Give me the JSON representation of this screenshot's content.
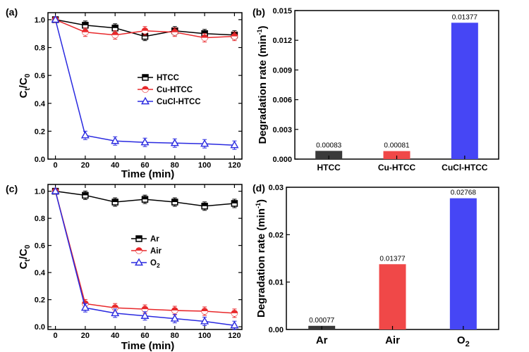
{
  "chart_data": [
    {
      "panel": "(a)",
      "type": "line",
      "xlabel": "Time (min)",
      "ylabel": "Ct/C0",
      "ylabel_main": "C",
      "ylabel_sub1": "t",
      "ylabel_sep": "/C",
      "ylabel_sub2": "0",
      "x": [
        0,
        20,
        40,
        60,
        80,
        100,
        120
      ],
      "xlim": [
        -5,
        125
      ],
      "ylim": [
        0,
        1.05
      ],
      "xticks": [
        "0",
        "20",
        "40",
        "60",
        "80",
        "100",
        "120"
      ],
      "yticks": [
        "0.0",
        "0.2",
        "0.4",
        "0.6",
        "0.8",
        "1.0"
      ],
      "legend": [
        {
          "name": "HTCC",
          "marker": "square",
          "color": "#000000"
        },
        {
          "name": "Cu-HTCC",
          "marker": "circle",
          "color": "#e8282b"
        },
        {
          "name": "CuCl-HTCC",
          "marker": "triangle",
          "color": "#2a2ae0"
        }
      ],
      "series": [
        {
          "name": "HTCC",
          "color": "#000000",
          "marker": "square",
          "values": [
            1.0,
            0.96,
            0.94,
            0.88,
            0.92,
            0.9,
            0.89
          ]
        },
        {
          "name": "Cu-HTCC",
          "color": "#e8282b",
          "marker": "circle",
          "values": [
            1.0,
            0.91,
            0.89,
            0.92,
            0.91,
            0.87,
            0.88
          ]
        },
        {
          "name": "CuCl-HTCC",
          "color": "#2a2ae0",
          "marker": "triangle",
          "values": [
            1.0,
            0.17,
            0.13,
            0.12,
            0.115,
            0.11,
            0.1
          ]
        }
      ]
    },
    {
      "panel": "(b)",
      "type": "bar",
      "ylabel_text": "Degradation rate (min",
      "ylabel_sup": "-1",
      "ylabel_close": ")",
      "ylim": [
        0,
        0.015
      ],
      "yticks": [
        "0.000",
        "0.003",
        "0.006",
        "0.009",
        "0.012",
        "0.015"
      ],
      "categories": [
        "HTCC",
        "Cu-HTCC",
        "CuCl-HTCC"
      ],
      "values": [
        0.00083,
        0.00081,
        0.01377
      ],
      "labels": [
        "0.00083",
        "0.00081",
        "0.01377"
      ],
      "colors": [
        "#3a3a3a",
        "#f04848",
        "#4646f5"
      ]
    },
    {
      "panel": "(c)",
      "type": "line",
      "xlabel": "Time (min)",
      "ylabel": "Ct/C0",
      "ylabel_main": "C",
      "ylabel_sub1": "t",
      "ylabel_sep": "/C",
      "ylabel_sub2": "0",
      "x": [
        0,
        20,
        40,
        60,
        80,
        100,
        120
      ],
      "xlim": [
        -5,
        125
      ],
      "ylim": [
        -0.02,
        1.05
      ],
      "xticks": [
        "0",
        "20",
        "40",
        "60",
        "80",
        "100",
        "120"
      ],
      "yticks": [
        "0.0",
        "0.2",
        "0.4",
        "0.6",
        "0.8",
        "1.0"
      ],
      "legend": [
        {
          "name": "Ar",
          "marker": "square",
          "color": "#000000"
        },
        {
          "name": "Air",
          "marker": "circle",
          "color": "#e8282b"
        },
        {
          "name": "O",
          "sub": "2",
          "marker": "triangle",
          "color": "#2a2ae0"
        }
      ],
      "series": [
        {
          "name": "Ar",
          "color": "#000000",
          "marker": "square",
          "values": [
            1.0,
            0.97,
            0.92,
            0.94,
            0.92,
            0.89,
            0.91
          ]
        },
        {
          "name": "Air",
          "color": "#e8282b",
          "marker": "circle",
          "values": [
            1.0,
            0.17,
            0.14,
            0.13,
            0.12,
            0.115,
            0.1
          ]
        },
        {
          "name": "O2",
          "color": "#2a2ae0",
          "marker": "triangle",
          "values": [
            1.0,
            0.14,
            0.1,
            0.08,
            0.06,
            0.04,
            0.01
          ]
        }
      ]
    },
    {
      "panel": "(d)",
      "type": "bar",
      "ylabel_text": "Degradation rate (min",
      "ylabel_sup": "-1",
      "ylabel_close": ")",
      "ylim": [
        0,
        0.03
      ],
      "yticks": [
        "0.00",
        "0.01",
        "0.02",
        "0.03"
      ],
      "categories": [
        "Ar",
        "Air",
        "O2"
      ],
      "category_display": [
        {
          "main": "Ar"
        },
        {
          "main": "Air"
        },
        {
          "main": "O",
          "sub": "2"
        }
      ],
      "values": [
        0.00077,
        0.01377,
        0.02768
      ],
      "labels": [
        "0.00077",
        "0.01377",
        "0.02768"
      ],
      "colors": [
        "#3a3a3a",
        "#f04848",
        "#4646f5"
      ]
    }
  ]
}
